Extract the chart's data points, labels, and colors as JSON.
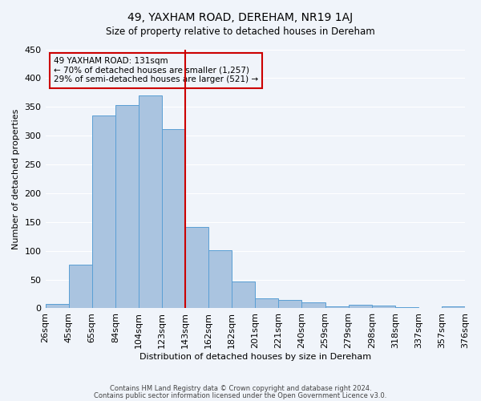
{
  "title": "49, YAXHAM ROAD, DEREHAM, NR19 1AJ",
  "subtitle": "Size of property relative to detached houses in Dereham",
  "xlabel": "Distribution of detached houses by size in Dereham",
  "ylabel": "Number of detached properties",
  "bar_values": [
    7,
    76,
    335,
    353,
    370,
    312,
    142,
    101,
    47,
    18,
    14,
    11,
    4,
    6,
    5,
    2,
    0,
    3
  ],
  "bin_labels": [
    "26sqm",
    "45sqm",
    "65sqm",
    "84sqm",
    "104sqm",
    "123sqm",
    "143sqm",
    "162sqm",
    "182sqm",
    "201sqm",
    "221sqm",
    "240sqm",
    "259sqm",
    "279sqm",
    "298sqm",
    "318sqm",
    "337sqm",
    "357sqm",
    "376sqm"
  ],
  "bar_color": "#aac4e0",
  "bar_edge_color": "#5a9fd4",
  "vline_color": "#cc0000",
  "annotation_title": "49 YAXHAM ROAD: 131sqm",
  "annotation_line1": "← 70% of detached houses are smaller (1,257)",
  "annotation_line2": "29% of semi-detached houses are larger (521) →",
  "annotation_box_color": "#cc0000",
  "ylim": [
    0,
    450
  ],
  "footer1": "Contains HM Land Registry data © Crown copyright and database right 2024.",
  "footer2": "Contains public sector information licensed under the Open Government Licence v3.0.",
  "background_color": "#f0f4fa",
  "grid_color": "#ffffff"
}
